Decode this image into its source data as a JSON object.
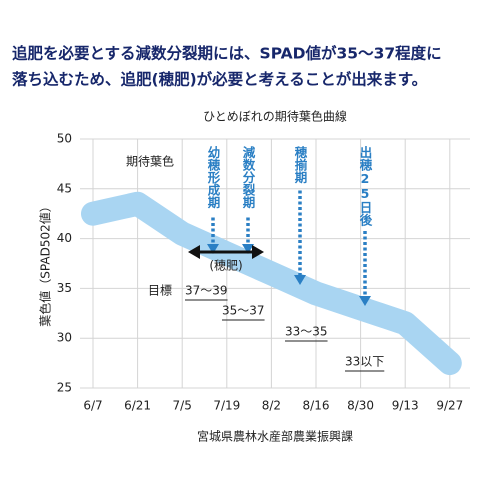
{
  "header": [
    "追肥を必要とする減数分裂期には、SPAD値が35〜37程度に",
    "落ち込むため、追肥(穂肥)が必要と考えることが出来ます。"
  ],
  "chart_data": {
    "type": "line",
    "title": "ひとめぼれの期待葉色曲線",
    "y_label": "葉色値（SPAD502値）",
    "source": "宮城県農林水産部農業振興課",
    "categories": [
      "6/7",
      "6/21",
      "7/5",
      "7/19",
      "8/2",
      "8/16",
      "8/30",
      "9/13",
      "9/27"
    ],
    "series": [
      {
        "name": "期待葉色",
        "color": "#a9d5f2",
        "values": [
          42.5,
          43.5,
          40.5,
          38.5,
          36.5,
          34.5,
          33,
          31.5,
          27.5
        ]
      }
    ],
    "ylim": [
      25,
      50
    ],
    "yticks": [
      25,
      30,
      35,
      40,
      45,
      50
    ],
    "grid": true,
    "stage_labels": [
      "幼穂形成期",
      "減数分裂期",
      "穂揃期",
      "出穂25日後"
    ],
    "fertilizer_label": "(穂肥)",
    "target_label": "目標",
    "ranges": [
      "37〜39",
      "35〜37",
      "33〜35",
      "33以下"
    ]
  }
}
